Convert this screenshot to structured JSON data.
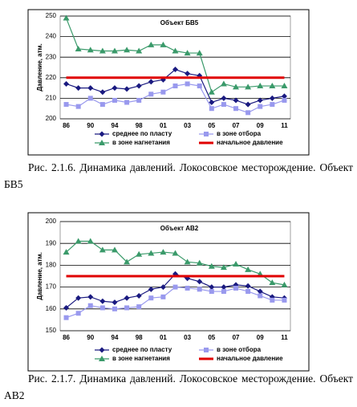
{
  "chart_data": [
    {
      "type": "line",
      "title": "Объект БВ5",
      "y_label": "Давление, атм.",
      "categories": [
        "86",
        null,
        "90",
        null,
        "94",
        null,
        "98",
        null,
        "01",
        null,
        "03",
        null,
        "05",
        null,
        "07",
        null,
        "09",
        null,
        "11"
      ],
      "ylim": [
        200,
        250
      ],
      "yticks": [
        200,
        210,
        220,
        230,
        240,
        250
      ],
      "grid": true,
      "series": [
        {
          "name": "среднее по пласту",
          "color": "#1a1a80",
          "marker": "diamond",
          "values": [
            217,
            215,
            215,
            213,
            215,
            214.5,
            216,
            218,
            219,
            224,
            222,
            221,
            208,
            210,
            209,
            207,
            209,
            210,
            211
          ]
        },
        {
          "name": "в зоне отбора",
          "color": "#9999ee",
          "marker": "square",
          "values": [
            207,
            206,
            210,
            207,
            209,
            208,
            209,
            212,
            213,
            216,
            217,
            216,
            205,
            207,
            205,
            203,
            206,
            207,
            209
          ]
        },
        {
          "name": "в зоне нагнетания",
          "color": "#3a9a6a",
          "marker": "triangle",
          "values": [
            249,
            234,
            233.5,
            233,
            233,
            233.5,
            233,
            236,
            236,
            233,
            232,
            232,
            213,
            217,
            215.5,
            215.5,
            216,
            216,
            216
          ]
        },
        {
          "name": "начальное давление",
          "color": "#e00000",
          "marker": "none",
          "values": [
            220,
            220,
            220,
            220,
            220,
            220,
            220,
            220,
            220,
            220,
            220,
            220,
            220,
            220,
            220,
            220,
            220,
            220,
            220
          ]
        }
      ],
      "caption": "Рис. 2.1.6. Динамика давлений. Локосовское месторождение. Объект БВ5"
    },
    {
      "type": "line",
      "title": "Объект АВ2",
      "y_label": "Давление, атм.",
      "categories": [
        "86",
        null,
        "90",
        null,
        "94",
        null,
        "98",
        null,
        "01",
        null,
        "03",
        null,
        "05",
        null,
        "07",
        null,
        "09",
        null,
        "11"
      ],
      "ylim": [
        150,
        200
      ],
      "yticks": [
        150,
        160,
        170,
        180,
        190,
        200
      ],
      "grid": true,
      "series": [
        {
          "name": "среднее по пласту",
          "color": "#1a1a80",
          "marker": "diamond",
          "values": [
            160.5,
            165,
            165.5,
            163.5,
            163,
            165,
            166,
            169,
            170,
            176,
            174,
            172.5,
            170,
            170,
            171,
            170.5,
            168,
            165.5,
            165
          ]
        },
        {
          "name": "в зоне отбора",
          "color": "#9999ee",
          "marker": "square",
          "values": [
            156,
            158,
            161.5,
            160.5,
            160,
            160.5,
            161,
            165,
            165.5,
            170,
            169.5,
            169,
            168,
            168,
            169.5,
            168,
            166,
            164,
            164
          ]
        },
        {
          "name": "в зоне нагнетания",
          "color": "#3a9a6a",
          "marker": "triangle",
          "values": [
            186,
            191,
            191,
            187,
            187,
            181.5,
            185,
            185.5,
            186,
            185.5,
            181.5,
            181,
            179.5,
            179,
            180.5,
            178,
            176,
            172,
            171
          ]
        },
        {
          "name": "начальное давление",
          "color": "#e00000",
          "marker": "none",
          "values": [
            175,
            175,
            175,
            175,
            175,
            175,
            175,
            175,
            175,
            175,
            175,
            175,
            175,
            175,
            175,
            175,
            175,
            175,
            175
          ]
        }
      ],
      "caption": "Рис. 2.1.7. Динамика давлений. Локосовское месторождение. Объект АВ2"
    }
  ]
}
